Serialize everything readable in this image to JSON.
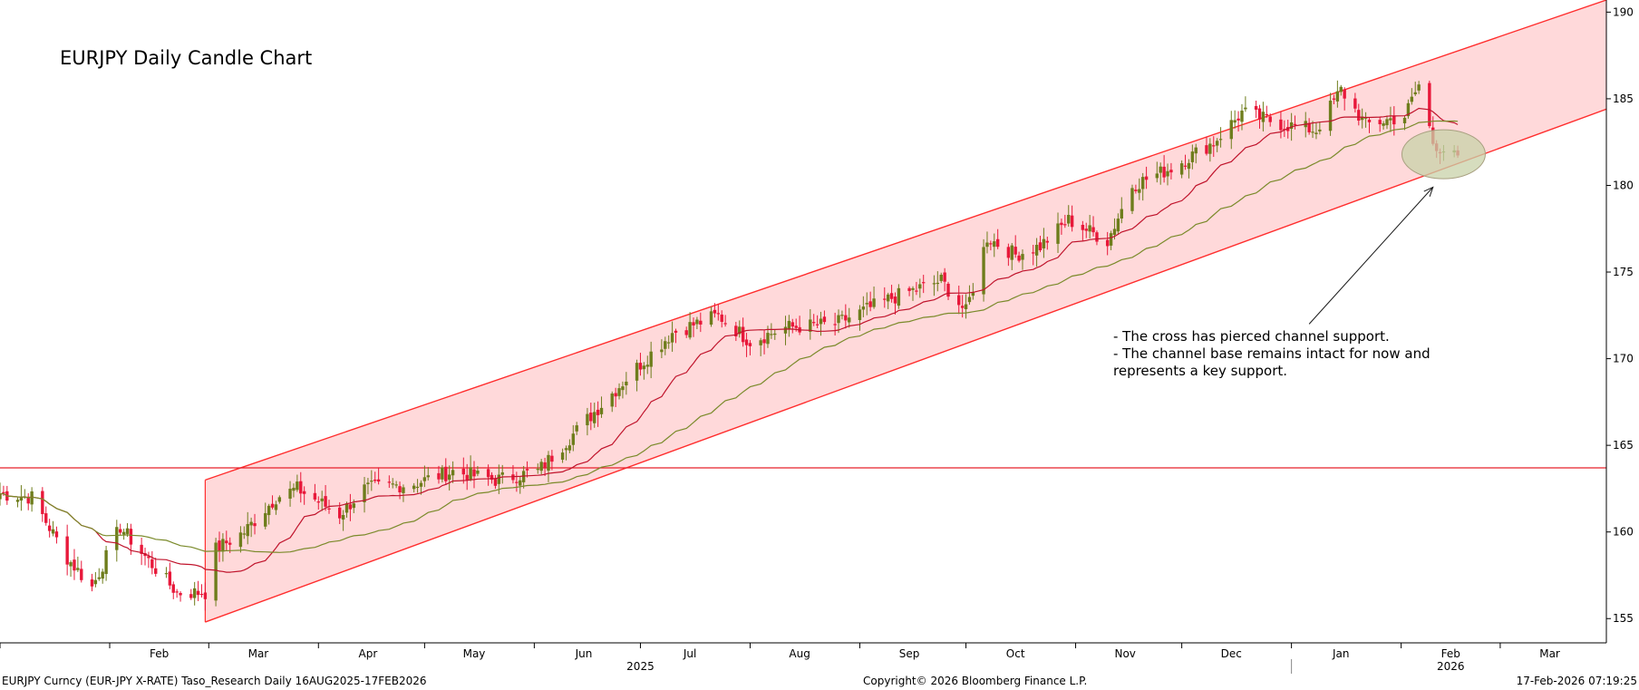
{
  "chart_data": {
    "type": "candlestick",
    "title": "EURJPY Daily Candle Chart",
    "ylim": [
      153.6,
      190.7
    ],
    "y_ticks": [
      155,
      160,
      165,
      170,
      175,
      180,
      185,
      190
    ],
    "y_axis_side": "right",
    "x_range": [
      "2025-01-01",
      "2026-03-31"
    ],
    "x_ticks": [
      {
        "label": "Feb",
        "date": "2025-02-15"
      },
      {
        "label": "Mar",
        "date": "2025-03-15"
      },
      {
        "label": "Apr",
        "date": "2025-04-15"
      },
      {
        "label": "May",
        "date": "2025-05-15"
      },
      {
        "label": "Jun",
        "date": "2025-06-15"
      },
      {
        "label": "Jul",
        "date": "2025-07-15"
      },
      {
        "label": "Aug",
        "date": "2025-08-15"
      },
      {
        "label": "Sep",
        "date": "2025-09-15"
      },
      {
        "label": "Oct",
        "date": "2025-10-15"
      },
      {
        "label": "Nov",
        "date": "2025-11-15"
      },
      {
        "label": "Dec",
        "date": "2025-12-15"
      },
      {
        "label": "Jan",
        "date": "2026-01-15"
      },
      {
        "label": "Feb",
        "date": "2026-02-15"
      },
      {
        "label": "Mar",
        "date": "2026-03-15"
      }
    ],
    "year_labels": [
      {
        "label": "2025",
        "date": "2025-07-01"
      },
      {
        "label": "2026",
        "date": "2026-02-15"
      }
    ],
    "key_points": [
      {
        "date": "2025-01-01",
        "close": 162.2
      },
      {
        "date": "2025-01-10",
        "close": 162.0
      },
      {
        "date": "2025-01-20",
        "close": 158.5
      },
      {
        "date": "2025-01-27",
        "close": 156.8
      },
      {
        "date": "2025-02-04",
        "close": 160.3
      },
      {
        "date": "2025-02-10",
        "close": 158.8
      },
      {
        "date": "2025-02-20",
        "close": 156.5
      },
      {
        "date": "2025-02-28",
        "close": 156.5
      },
      {
        "date": "2025-03-03",
        "close": 159.0
      },
      {
        "date": "2025-03-11",
        "close": 160.0
      },
      {
        "date": "2025-03-20",
        "close": 162.0
      },
      {
        "date": "2025-03-26",
        "close": 162.5
      },
      {
        "date": "2025-04-07",
        "close": 161.0
      },
      {
        "date": "2025-04-14",
        "close": 162.5
      },
      {
        "date": "2025-04-28",
        "close": 162.8
      },
      {
        "date": "2025-05-09",
        "close": 163.5
      },
      {
        "date": "2025-05-21",
        "close": 163.0
      },
      {
        "date": "2025-06-02",
        "close": 163.5
      },
      {
        "date": "2025-06-16",
        "close": 166.5
      },
      {
        "date": "2025-06-30",
        "close": 169.5
      },
      {
        "date": "2025-07-10",
        "close": 171.5
      },
      {
        "date": "2025-07-23",
        "close": 172.5
      },
      {
        "date": "2025-08-01",
        "close": 171.0
      },
      {
        "date": "2025-08-11",
        "close": 171.8
      },
      {
        "date": "2025-08-25",
        "close": 172.0
      },
      {
        "date": "2025-09-10",
        "close": 173.5
      },
      {
        "date": "2025-09-24",
        "close": 174.5
      },
      {
        "date": "2025-10-01",
        "close": 172.7
      },
      {
        "date": "2025-10-07",
        "close": 177.0
      },
      {
        "date": "2025-10-15",
        "close": 176.0
      },
      {
        "date": "2025-10-22",
        "close": 176.5
      },
      {
        "date": "2025-10-30",
        "close": 178.0
      },
      {
        "date": "2025-11-10",
        "close": 176.8
      },
      {
        "date": "2025-11-17",
        "close": 180.0
      },
      {
        "date": "2025-11-28",
        "close": 181.0
      },
      {
        "date": "2025-12-10",
        "close": 182.5
      },
      {
        "date": "2025-12-18",
        "close": 184.2
      },
      {
        "date": "2025-12-30",
        "close": 183.5
      },
      {
        "date": "2026-01-08",
        "close": 183.2
      },
      {
        "date": "2026-01-15",
        "close": 185.5
      },
      {
        "date": "2026-01-22",
        "close": 183.5
      },
      {
        "date": "2026-02-02",
        "close": 184.0
      },
      {
        "date": "2026-02-06",
        "close": 185.8
      },
      {
        "date": "2026-02-10",
        "close": 182.5
      },
      {
        "date": "2026-02-17",
        "close": 181.5
      }
    ],
    "channel": {
      "upper": [
        {
          "date": "2025-02-28",
          "y": 163.0
        },
        {
          "date": "2026-03-31",
          "y": 190.7
        }
      ],
      "lower": [
        {
          "date": "2025-02-28",
          "y": 154.8
        },
        {
          "date": "2026-03-31",
          "y": 184.4
        }
      ],
      "fill": "#ffd9da",
      "line": "#ff2d2d"
    },
    "horizontal_line": {
      "y": 163.7,
      "color": "#e8202a"
    },
    "moving_averages": [
      {
        "period": 20,
        "color": "#c0142c"
      },
      {
        "period": 50,
        "color": "#7a8a2a"
      }
    ],
    "candle_colors": {
      "up": "#6e7d1c",
      "down": "#e8183a"
    },
    "highlight_ellipse": {
      "date": "2026-02-13",
      "y": 181.8,
      "fill": "#c8d2a8",
      "stroke": "#a8a080"
    },
    "arrow": {
      "from": {
        "date": "2026-01-06",
        "y": 172.0
      },
      "to": {
        "date": "2026-02-10",
        "y": 179.9
      }
    },
    "annotation_lines": [
      "- The cross has pierced channel support.",
      "- The channel base remains intact for now and",
      "represents a key support."
    ]
  },
  "footer": {
    "left": "EURJPY Curncy (EUR-JPY X-RATE) Taso_Research Daily 16AUG2025-17FEB2026",
    "center": "Copyright© 2026 Bloomberg Finance L.P.",
    "right": "17-Feb-2026 07:19:25"
  }
}
